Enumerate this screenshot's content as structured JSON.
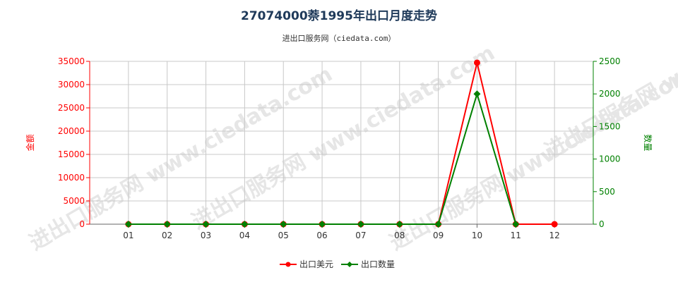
{
  "title": "27074000萘1995年出口月度走势",
  "subtitle": "进出口服务网（ciedata.com）",
  "watermark": "进出口服务网 www.ciedata.com",
  "colors": {
    "amount": "#ff0000",
    "quantity": "#008000",
    "grid": "#c8c8c8",
    "axis": "#666666"
  },
  "chart_data": {
    "type": "line",
    "categories": [
      "01",
      "02",
      "03",
      "04",
      "05",
      "06",
      "07",
      "08",
      "09",
      "10",
      "11",
      "12"
    ],
    "y_left": {
      "label": "金额",
      "range": [
        0,
        35000
      ],
      "ticks": [
        0,
        5000,
        10000,
        15000,
        20000,
        25000,
        30000,
        35000
      ]
    },
    "y_right": {
      "label": "数量",
      "range": [
        0,
        2500
      ],
      "ticks": [
        0,
        500,
        1000,
        1500,
        2000,
        2500
      ]
    },
    "series": [
      {
        "name": "出口美元",
        "axis": "left",
        "marker": "circle",
        "values": [
          0,
          0,
          0,
          0,
          0,
          0,
          0,
          0,
          0,
          34700,
          0,
          0
        ]
      },
      {
        "name": "出口数量",
        "axis": "right",
        "marker": "diamond",
        "values": [
          0,
          0,
          0,
          0,
          0,
          0,
          0,
          0,
          0,
          2000,
          0,
          null
        ]
      }
    ],
    "grid": true,
    "legend": "bottom-center"
  }
}
